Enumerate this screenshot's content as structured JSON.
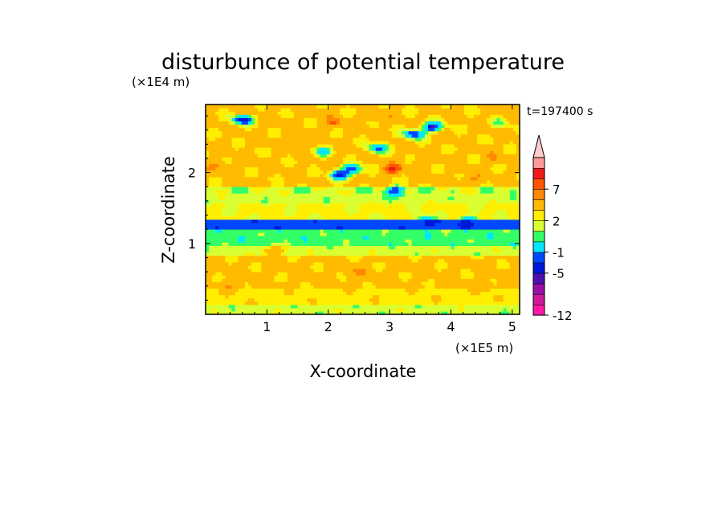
{
  "chart_data": {
    "type": "heatmap",
    "title": "disturbunce of potential temperature",
    "time_label": "t=197400 s",
    "xlabel": "X-coordinate",
    "ylabel": "Z-coordinate",
    "x_unit": "(×1E5 m)",
    "y_unit": "(×1E4 m)",
    "xlim": [
      0,
      5.12
    ],
    "ylim": [
      0,
      2.96
    ],
    "x_ticks": [
      1,
      2,
      3,
      4,
      5
    ],
    "x_tick_labels": [
      "1",
      "2",
      "3",
      "4",
      "5"
    ],
    "y_ticks": [
      1,
      2
    ],
    "y_tick_labels": [
      "1",
      "2"
    ],
    "colorbar": {
      "levels": [
        -12,
        -10,
        -8,
        -6,
        -5,
        -3,
        -1,
        0,
        1,
        2,
        4,
        5,
        7,
        9,
        11
      ],
      "colors": [
        "#ff1aa6",
        "#cc1a99",
        "#9910a6",
        "#4d10b3",
        "#0019d9",
        "#0048ff",
        "#00e6ff",
        "#33ff66",
        "#d9ff33",
        "#ffee00",
        "#ffbb00",
        "#ff8800",
        "#ff5500",
        "#ee1a1a",
        "#ff9999",
        "#ffcccc"
      ],
      "tick_values": [
        -12,
        -5,
        -1,
        2,
        7
      ],
      "tick_labels": [
        "-12",
        "-5",
        "-1",
        "2",
        "7"
      ],
      "extend_max": true
    },
    "field": {
      "background": 1.5,
      "bands": [
        {
          "z": [
            0.0,
            0.12
          ],
          "value": 0.5
        },
        {
          "z": [
            0.12,
            0.35
          ],
          "value": 1.6
        },
        {
          "z": [
            0.35,
            0.82
          ],
          "value": 2.3
        },
        {
          "z": [
            0.82,
            0.95
          ],
          "value": 0.5
        },
        {
          "z": [
            0.95,
            1.2
          ],
          "value": -0.5
        },
        {
          "z": [
            1.2,
            1.33
          ],
          "value": -4.5
        },
        {
          "z": [
            1.33,
            1.55
          ],
          "value": 1.2
        },
        {
          "z": [
            1.55,
            1.8
          ],
          "value": 0.5
        },
        {
          "z": [
            1.8,
            2.96
          ],
          "value": 2.5
        }
      ],
      "blobs": [
        {
          "x": 0.6,
          "z": 2.75,
          "value": -5.5
        },
        {
          "x": 1.3,
          "z": 2.55,
          "value": 2.5
        },
        {
          "x": 1.5,
          "z": 2.45,
          "value": 4.5
        },
        {
          "x": 2.1,
          "z": 2.7,
          "value": 4.8
        },
        {
          "x": 1.9,
          "z": 2.3,
          "value": -1.0
        },
        {
          "x": 2.2,
          "z": 1.98,
          "value": -5.5
        },
        {
          "x": 2.4,
          "z": 2.05,
          "value": -5.0
        },
        {
          "x": 2.8,
          "z": 2.35,
          "value": -3.5
        },
        {
          "x": 3.05,
          "z": 2.05,
          "value": 6.5
        },
        {
          "x": 3.1,
          "z": 1.75,
          "value": -4.5
        },
        {
          "x": 3.4,
          "z": 2.55,
          "value": -5.0
        },
        {
          "x": 3.7,
          "z": 2.65,
          "value": -5.5
        },
        {
          "x": 3.5,
          "z": 2.15,
          "value": 4.0
        },
        {
          "x": 2.75,
          "z": 2.8,
          "value": 4.5
        },
        {
          "x": 0.25,
          "z": 2.1,
          "value": 4.2
        },
        {
          "x": 0.5,
          "z": 1.6,
          "value": 0.5
        },
        {
          "x": 4.8,
          "z": 2.7,
          "value": 0.3
        },
        {
          "x": 4.3,
          "z": 1.9,
          "value": 4.5
        },
        {
          "x": 4.7,
          "z": 2.2,
          "value": 3.5
        },
        {
          "x": 3.6,
          "z": 1.3,
          "value": -5.5
        },
        {
          "x": 4.3,
          "z": 1.3,
          "value": -5.0
        },
        {
          "x": 1.1,
          "z": 0.9,
          "value": 4.0
        },
        {
          "x": 2.5,
          "z": 0.6,
          "value": 4.3
        },
        {
          "x": 0.4,
          "z": 0.4,
          "value": 4.0
        },
        {
          "x": 4.5,
          "z": 0.4,
          "value": 3.8
        }
      ]
    }
  }
}
